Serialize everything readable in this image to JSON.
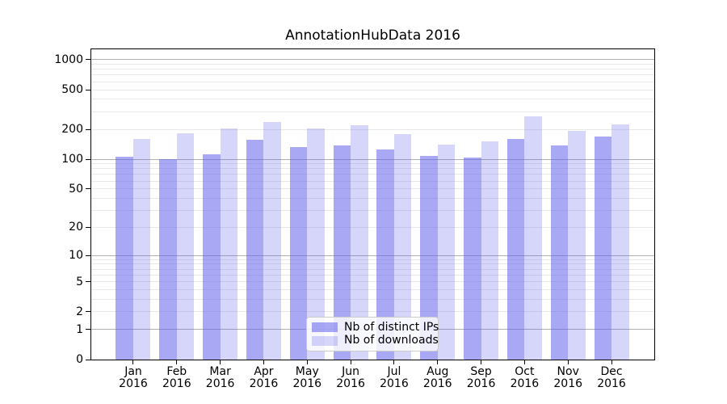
{
  "chart_data": {
    "type": "bar",
    "title": "AnnotationHubData 2016",
    "categories": [
      "Jan 2016",
      "Feb 2016",
      "Mar 2016",
      "Apr 2016",
      "May 2016",
      "Jun 2016",
      "Jul 2016",
      "Aug 2016",
      "Sep 2016",
      "Oct 2016",
      "Nov 2016",
      "Dec 2016"
    ],
    "series": [
      {
        "name": "Nb of distinct IPs",
        "color": "#6161ed",
        "alpha": 0.55,
        "values": [
          105,
          101,
          112,
          157,
          133,
          137,
          126,
          108,
          103,
          159,
          137,
          169
        ]
      },
      {
        "name": "Nb of downloads",
        "color": "#6161ed",
        "alpha": 0.26,
        "values": [
          160,
          184,
          204,
          239,
          204,
          222,
          178,
          141,
          151,
          270,
          193,
          225
        ]
      }
    ],
    "xlabel": "",
    "ylabel": "",
    "yscale": "log1p",
    "ylim": [
      0,
      1270
    ],
    "yticks": [
      0,
      1,
      2,
      5,
      10,
      20,
      50,
      100,
      200,
      500,
      1000
    ],
    "grid": {
      "major_lines": [
        1,
        10,
        100,
        1000
      ],
      "minor_decades": [
        1,
        10,
        100
      ],
      "minor_multiples": [
        2,
        3,
        4,
        5,
        6,
        7,
        8,
        9
      ]
    },
    "legend_position": "inside-lower-center"
  },
  "colors": {
    "background": "#ffffff",
    "text": "#000000",
    "axis": "#000000",
    "major_grid": "#b0b0b0",
    "minor_grid": "#e8e8e8",
    "legend_border": "#cccccc"
  }
}
